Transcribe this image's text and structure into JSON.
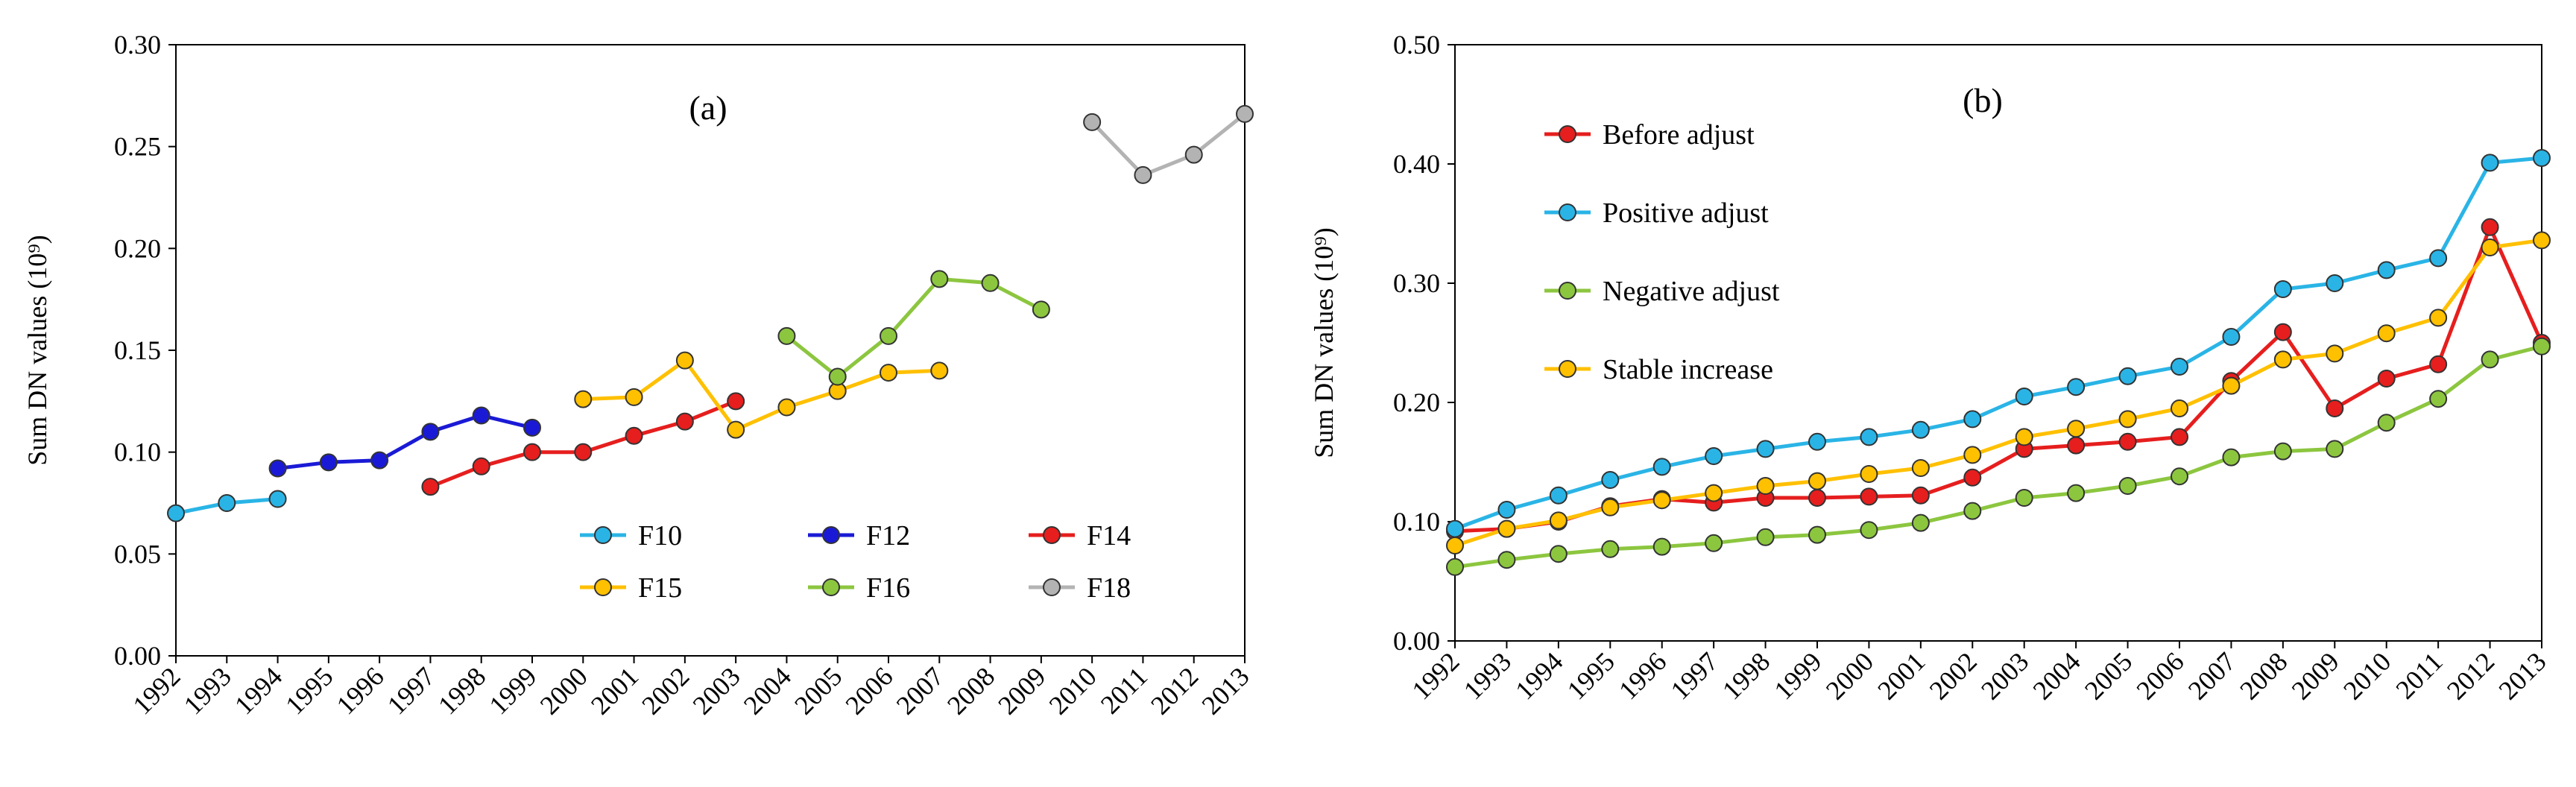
{
  "chart_data": [
    {
      "type": "line",
      "panel_label": "(a)",
      "xlabel": "",
      "ylabel": "Sum DN values (10⁹)",
      "ylim": [
        0,
        0.3
      ],
      "yticks": [
        "0.00",
        "0.05",
        "0.10",
        "0.15",
        "0.20",
        "0.25",
        "0.30"
      ],
      "categories": [
        "1992",
        "1993",
        "1994",
        "1995",
        "1996",
        "1997",
        "1998",
        "1999",
        "2000",
        "2001",
        "2002",
        "2003",
        "2004",
        "2005",
        "2006",
        "2007",
        "2008",
        "2009",
        "2010",
        "2011",
        "2012",
        "2013"
      ],
      "series": [
        {
          "name": "F10",
          "color": "#2ab4e6",
          "x": [
            "1992",
            "1993",
            "1994"
          ],
          "values": [
            0.07,
            0.075,
            0.077
          ]
        },
        {
          "name": "F12",
          "color": "#1a1ad6",
          "x": [
            "1994",
            "1995",
            "1996",
            "1997",
            "1998",
            "1999"
          ],
          "values": [
            0.092,
            0.095,
            0.096,
            0.11,
            0.118,
            0.112
          ]
        },
        {
          "name": "F14",
          "color": "#e61e1e",
          "x": [
            "1997",
            "1998",
            "1999",
            "2000",
            "2001",
            "2002",
            "2003"
          ],
          "values": [
            0.083,
            0.093,
            0.1,
            0.1,
            0.108,
            0.115,
            0.125
          ]
        },
        {
          "name": "F15",
          "color": "#ffc000",
          "x": [
            "2000",
            "2001",
            "2002",
            "2003",
            "2004",
            "2005",
            "2006",
            "2007"
          ],
          "values": [
            0.126,
            0.127,
            0.145,
            0.111,
            0.122,
            0.13,
            0.139,
            0.14
          ]
        },
        {
          "name": "F16",
          "color": "#8cc63f",
          "x": [
            "2004",
            "2005",
            "2006",
            "2007",
            "2008",
            "2009"
          ],
          "values": [
            0.157,
            0.137,
            0.157,
            0.185,
            0.183,
            0.17
          ]
        },
        {
          "name": "F18",
          "color": "#b3b3b3",
          "x": [
            "2010",
            "2011",
            "2012",
            "2013"
          ],
          "values": [
            0.262,
            0.236,
            0.246,
            0.266
          ]
        }
      ]
    },
    {
      "type": "line",
      "panel_label": "(b)",
      "xlabel": "",
      "ylabel": "Sum DN values (10⁹)",
      "ylim": [
        0,
        0.5
      ],
      "yticks": [
        "0.00",
        "0.10",
        "0.20",
        "0.30",
        "0.40",
        "0.50"
      ],
      "categories": [
        "1992",
        "1993",
        "1994",
        "1995",
        "1996",
        "1997",
        "1998",
        "1999",
        "2000",
        "2001",
        "2002",
        "2003",
        "2004",
        "2005",
        "2006",
        "2007",
        "2008",
        "2009",
        "2010",
        "2011",
        "2012",
        "2013"
      ],
      "series": [
        {
          "name": "Before adjust",
          "color": "#e61e1e",
          "values": [
            0.092,
            0.094,
            0.1,
            0.113,
            0.119,
            0.116,
            0.12,
            0.12,
            0.121,
            0.122,
            0.137,
            0.161,
            0.164,
            0.167,
            0.171,
            0.218,
            0.259,
            0.195,
            0.22,
            0.232,
            0.347,
            0.25
          ]
        },
        {
          "name": "Positive adjust",
          "color": "#2ab4e6",
          "values": [
            0.094,
            0.11,
            0.122,
            0.135,
            0.146,
            0.155,
            0.161,
            0.167,
            0.171,
            0.177,
            0.186,
            0.205,
            0.213,
            0.222,
            0.23,
            0.255,
            0.295,
            0.3,
            0.311,
            0.321,
            0.401,
            0.405
          ]
        },
        {
          "name": "Negative adjust",
          "color": "#8cc63f",
          "values": [
            0.062,
            0.068,
            0.073,
            0.077,
            0.079,
            0.082,
            0.087,
            0.089,
            0.093,
            0.099,
            0.109,
            0.12,
            0.124,
            0.13,
            0.138,
            0.154,
            0.159,
            0.161,
            0.183,
            0.203,
            0.236,
            0.247
          ]
        },
        {
          "name": "Stable increase",
          "color": "#ffc000",
          "values": [
            0.08,
            0.094,
            0.101,
            0.112,
            0.118,
            0.124,
            0.13,
            0.134,
            0.14,
            0.145,
            0.156,
            0.171,
            0.178,
            0.186,
            0.195,
            0.214,
            0.236,
            0.241,
            0.258,
            0.271,
            0.33,
            0.336
          ]
        }
      ]
    }
  ]
}
